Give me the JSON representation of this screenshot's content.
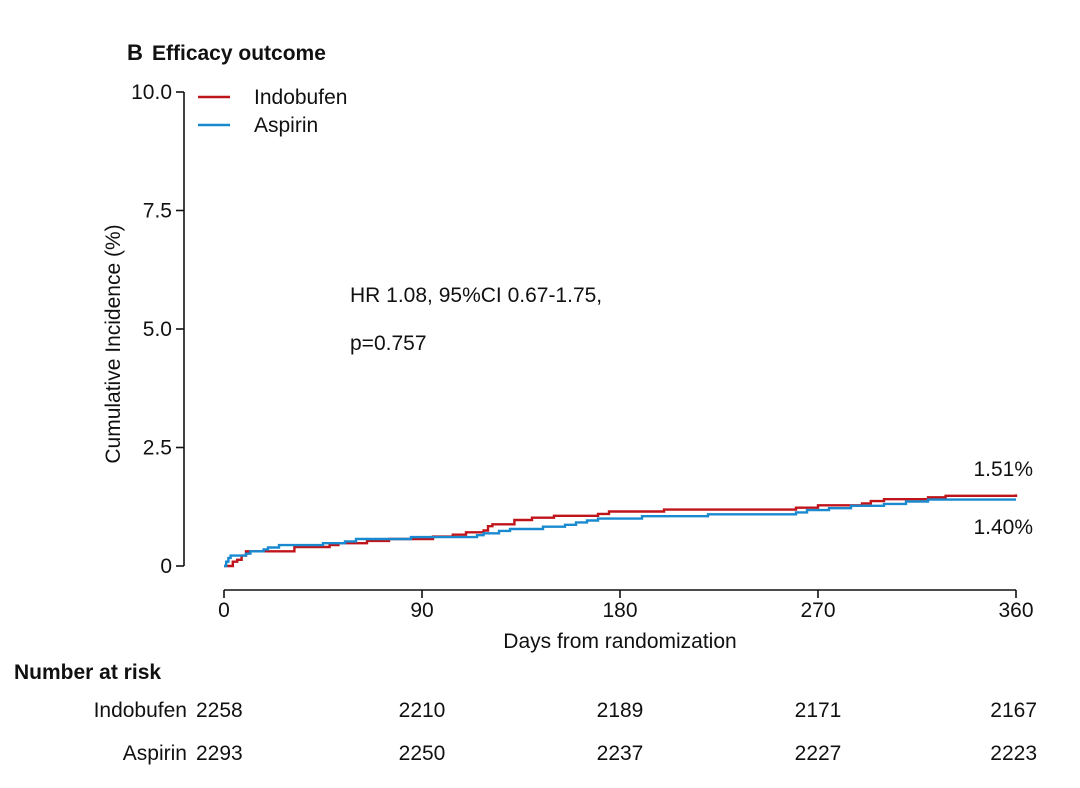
{
  "panel": {
    "letter": "B",
    "title": "Efficacy outcome"
  },
  "chart_data": {
    "type": "line",
    "xlabel": "Days from randomization",
    "ylabel": "Cumulative Incidence (%)",
    "xlim": [
      0,
      360
    ],
    "ylim": [
      0,
      10
    ],
    "x_ticks": [
      "0",
      "90",
      "180",
      "270",
      "360"
    ],
    "y_ticks": [
      "0",
      "2.5",
      "5.0",
      "7.5",
      "10.0"
    ],
    "grid": false,
    "legend_position": "top-left",
    "annotation": {
      "line1": "HR 1.08, 95%CI 0.67-1.75,",
      "line2": "p=0.757"
    },
    "series": [
      {
        "name": "Indobufen",
        "color": "#c0141b",
        "end_label": "1.51%",
        "step_points": [
          [
            0,
            0
          ],
          [
            3,
            0
          ],
          [
            4,
            0.09
          ],
          [
            6,
            0.13
          ],
          [
            8,
            0.22
          ],
          [
            10,
            0.31
          ],
          [
            12,
            0.31
          ],
          [
            30,
            0.31
          ],
          [
            32,
            0.4
          ],
          [
            48,
            0.44
          ],
          [
            52,
            0.48
          ],
          [
            65,
            0.53
          ],
          [
            75,
            0.57
          ],
          [
            95,
            0.62
          ],
          [
            98,
            0.62
          ],
          [
            104,
            0.66
          ],
          [
            110,
            0.71
          ],
          [
            118,
            0.75
          ],
          [
            120,
            0.84
          ],
          [
            122,
            0.88
          ],
          [
            132,
            0.97
          ],
          [
            140,
            1.02
          ],
          [
            150,
            1.06
          ],
          [
            170,
            1.1
          ],
          [
            175,
            1.15
          ],
          [
            200,
            1.19
          ],
          [
            260,
            1.23
          ],
          [
            270,
            1.28
          ],
          [
            290,
            1.32
          ],
          [
            294,
            1.37
          ],
          [
            300,
            1.41
          ],
          [
            320,
            1.45
          ],
          [
            328,
            1.48
          ],
          [
            360,
            1.51
          ]
        ]
      },
      {
        "name": "Aspirin",
        "color": "#1a8ad0",
        "end_label": "1.40%",
        "step_points": [
          [
            0,
            0
          ],
          [
            1,
            0.09
          ],
          [
            2,
            0.17
          ],
          [
            3,
            0.22
          ],
          [
            10,
            0.26
          ],
          [
            12,
            0.31
          ],
          [
            18,
            0.35
          ],
          [
            20,
            0.39
          ],
          [
            25,
            0.44
          ],
          [
            45,
            0.48
          ],
          [
            55,
            0.52
          ],
          [
            60,
            0.57
          ],
          [
            85,
            0.61
          ],
          [
            115,
            0.65
          ],
          [
            118,
            0.69
          ],
          [
            125,
            0.74
          ],
          [
            130,
            0.78
          ],
          [
            145,
            0.83
          ],
          [
            155,
            0.87
          ],
          [
            160,
            0.92
          ],
          [
            165,
            0.96
          ],
          [
            170,
            1.0
          ],
          [
            190,
            1.05
          ],
          [
            220,
            1.09
          ],
          [
            260,
            1.13
          ],
          [
            265,
            1.18
          ],
          [
            275,
            1.22
          ],
          [
            285,
            1.27
          ],
          [
            300,
            1.31
          ],
          [
            310,
            1.36
          ],
          [
            320,
            1.4
          ],
          [
            360,
            1.4
          ]
        ]
      }
    ]
  },
  "risk_table": {
    "title": "Number at risk",
    "rows": [
      {
        "label": "Indobufen",
        "values": [
          "2258",
          "2210",
          "2189",
          "2171",
          "2167"
        ]
      },
      {
        "label": "Aspirin",
        "values": [
          "2293",
          "2250",
          "2237",
          "2227",
          "2223"
        ]
      }
    ]
  }
}
